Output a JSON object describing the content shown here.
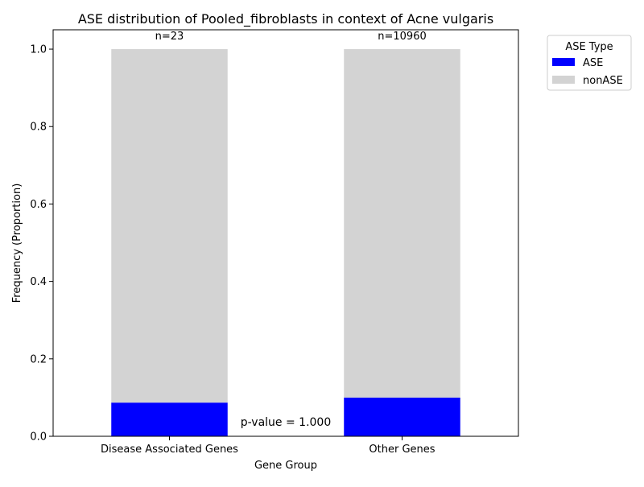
{
  "chart_data": {
    "type": "bar",
    "stacked": true,
    "title": "ASE distribution of Pooled_fibroblasts in context of Acne vulgaris",
    "xlabel": "Gene Group",
    "ylabel": "Frequency (Proportion)",
    "categories": [
      "Disease Associated Genes",
      "Other Genes"
    ],
    "series": [
      {
        "name": "ASE",
        "values": [
          0.087,
          0.1
        ],
        "color": "#0000ff"
      },
      {
        "name": "nonASE",
        "values": [
          0.913,
          0.9
        ],
        "color": "#d3d3d3"
      }
    ],
    "bar_labels": [
      "n=23",
      "n=10960"
    ],
    "annotation": "p-value = 1.000",
    "ylim": [
      0,
      1.05
    ],
    "yticks": [
      0.0,
      0.2,
      0.4,
      0.6,
      0.8,
      1.0
    ],
    "ytick_labels": [
      "0.0",
      "0.2",
      "0.4",
      "0.6",
      "0.8",
      "1.0"
    ],
    "legend": {
      "title": "ASE Type",
      "placement": "outside-top-right"
    },
    "grid": false
  }
}
